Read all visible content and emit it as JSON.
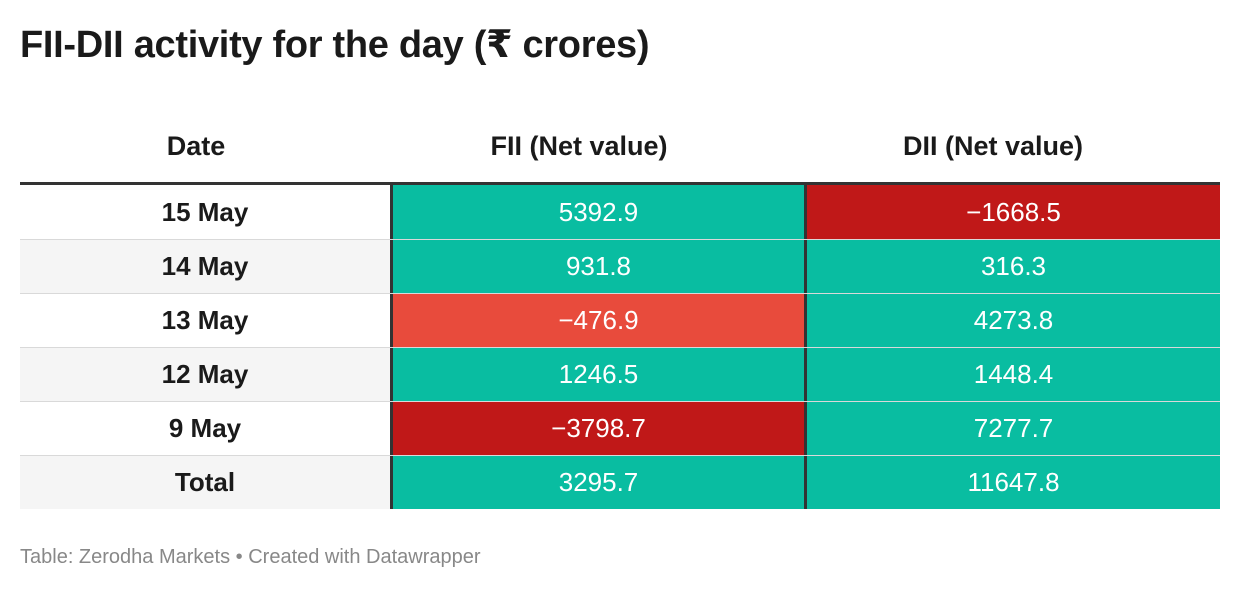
{
  "title": "FII-DII activity for the day (₹ crores)",
  "headers": {
    "date": "Date",
    "fii": "FII (Net value)",
    "dii": "DII (Net value)"
  },
  "rows": [
    {
      "date": "15 May",
      "fii": "5392.9",
      "dii": "−1668.5"
    },
    {
      "date": "14 May",
      "fii": "931.8",
      "dii": "316.3"
    },
    {
      "date": "13 May",
      "fii": "−476.9",
      "dii": "4273.8"
    },
    {
      "date": "12 May",
      "fii": "1246.5",
      "dii": "1448.4"
    },
    {
      "date": "9 May",
      "fii": "−3798.7",
      "dii": "7277.7"
    },
    {
      "date": "Total",
      "fii": "3295.7",
      "dii": "11647.8"
    }
  ],
  "source": "Table: Zerodha Markets • Created with Datawrapper",
  "colors": {
    "positive": "#09bda1",
    "negative_mild": "#e84b3c",
    "negative_strong": "#c01818"
  },
  "chart_data": {
    "type": "table",
    "columns": [
      "Date",
      "FII (Net value)",
      "DII (Net value)"
    ],
    "categories": [
      "15 May",
      "14 May",
      "13 May",
      "12 May",
      "9 May",
      "Total"
    ],
    "series": [
      {
        "name": "FII (Net value)",
        "values": [
          5392.9,
          931.8,
          -476.9,
          1246.5,
          -3798.7,
          3295.7
        ]
      },
      {
        "name": "DII (Net value)",
        "values": [
          -1668.5,
          316.3,
          4273.8,
          1448.4,
          7277.7,
          11647.8
        ]
      }
    ]
  }
}
